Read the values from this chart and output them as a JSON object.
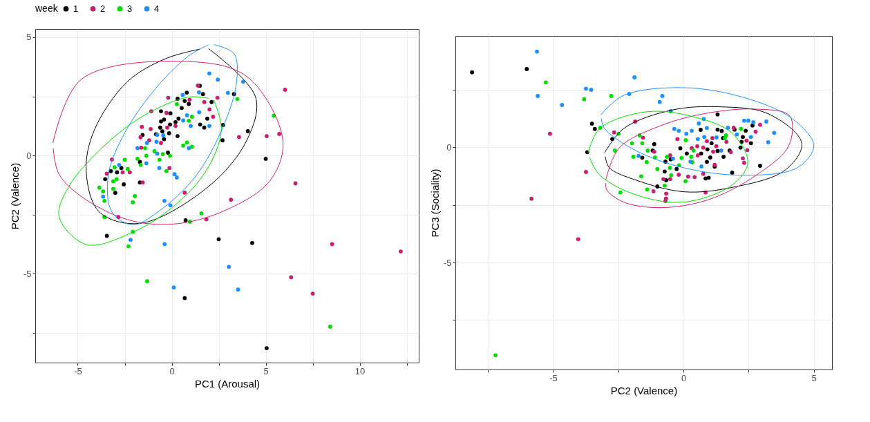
{
  "chart_data": [
    {
      "type": "scatter",
      "xlabel": "PC1 (Arousal)",
      "ylabel": "PC2 (Valence)",
      "legend_title": "week",
      "legend": "top",
      "grid": true,
      "marker": "circle",
      "xlim": [
        -7.26,
        13.14
      ],
      "ylim": [
        -8.76,
        5.35
      ],
      "xticks": [
        -5,
        {
          "value": -2.5,
          "label": null
        },
        0,
        {
          "value": 2.5,
          "label": null
        },
        5,
        {
          "value": 7.5,
          "label": null
        },
        10,
        {
          "value": 12.5,
          "label": null
        }
      ],
      "yticks": [
        {
          "value": -7.5,
          "label": null
        },
        -5,
        {
          "value": -2.5,
          "label": null
        },
        0,
        {
          "value": 2.5,
          "label": null
        },
        5
      ],
      "series": [
        {
          "name": "1",
          "color": "#000000",
          "x": [
            1.49,
            0.8,
            1.66,
            3.31,
            0.31,
            0.69,
            0.91,
            0.53,
            2.12,
            -0.57,
            -0.07,
            1.89,
            -0.41,
            0.36,
            0.2,
            -0.57,
            -0.09,
            1.51,
            1.73,
            2.73,
            -0.61,
            -0.5,
            -0.14,
            -0.84,
            -1.55,
            0.31,
            -0.41,
            4.05,
            2.7,
            -0.2,
            -1.69,
            5.0,
            -2.91,
            -2.68,
            -3.24,
            -3.54,
            -2.55,
            -3.0,
            -1.69,
            0.74,
            -3.45,
            2.5,
            4.28,
            0.69,
            5.05
          ],
          "values": [
            2.95,
            2.66,
            2.6,
            2.6,
            2.4,
            2.31,
            2.18,
            2.01,
            2.26,
            1.87,
            1.78,
            1.56,
            1.52,
            1.56,
            1.41,
            1.44,
            1.31,
            1.31,
            1.18,
            1.29,
            1.18,
            1.02,
            0.94,
            0.9,
            0.87,
            0.82,
            0.69,
            1.03,
            0.64,
            0.12,
            -0.27,
            -0.14,
            -0.71,
            -0.53,
            -0.66,
            -1.0,
            -1.22,
            -1.58,
            -1.14,
            -2.74,
            -3.4,
            -3.54,
            -3.7,
            -6.03,
            -8.15
          ]
        },
        {
          "name": "2",
          "color": "#cc1e6e",
          "x": [
            1.39,
            -0.19,
            0.95,
            2.43,
            6.03,
            2.01,
            2.2,
            1.73,
            -1.09,
            -0.28,
            -1.59,
            -1.12,
            -0.24,
            0.2,
            -1.66,
            -1.2,
            -0.57,
            -1.62,
            3.58,
            5.05,
            5.72,
            -0.12,
            -3.18,
            -3.45,
            -2.61,
            -2.23,
            -1.55,
            6.58,
            0.69,
            3.15,
            1.84,
            -2.84,
            8.53,
            12.18,
            6.35,
            7.5
          ],
          "values": [
            2.96,
            2.44,
            2.36,
            2.44,
            2.78,
            1.95,
            1.64,
            2.26,
            1.87,
            1.8,
            1.21,
            1.12,
            1.18,
            1.25,
            0.77,
            0.64,
            0.53,
            0.33,
            0.78,
            0.82,
            0.91,
            -0.53,
            -0.17,
            -0.77,
            -0.71,
            -0.71,
            -1.14,
            -1.18,
            -1.57,
            -1.87,
            -2.7,
            -2.6,
            -3.75,
            -4.06,
            -5.15,
            -5.84
          ]
        },
        {
          "name": "3",
          "color": "#00dd00",
          "x": [
            0.27,
            3.49,
            1.08,
            0.91,
            5.43,
            0.81,
            0.61,
            1.08,
            -1.42,
            -1.35,
            -0.92,
            -0.47,
            -0.09,
            -0.65,
            -1.82,
            -1.65,
            -2.5,
            -2.34,
            -0.28,
            -3.04,
            -3.11,
            -2.93,
            -3.85,
            -3.65,
            -3.58,
            -3.11,
            -1.96,
            -2.07,
            -3.58,
            1.58,
            0.97,
            -2.07,
            -2.3,
            -1.31,
            8.43
          ],
          "values": [
            2.17,
            2.39,
            1.64,
            1.47,
            1.68,
            0.55,
            0.42,
            0.37,
            0.31,
            -0.01,
            0.18,
            0.06,
            -0.01,
            -0.18,
            -0.14,
            -0.4,
            -0.18,
            -0.57,
            -0.66,
            -0.5,
            -1.09,
            -1.0,
            -1.36,
            -1.52,
            -1.92,
            -1.41,
            -1.72,
            -1.98,
            -2.6,
            -2.45,
            -2.8,
            -3.23,
            -3.84,
            -5.32,
            -7.24
          ]
        },
        {
          "name": "4",
          "color": "#1e90ff",
          "x": [
            2.0,
            2.45,
            3.8,
            2.99,
            1.45,
            0.58,
            1.46,
            0.81,
            0.61,
            1.01,
            2.0,
            -0.77,
            -0.45,
            -0.81,
            -1.32,
            -1.82,
            0.91,
            -0.77,
            -1.35,
            -2.8,
            -0.66,
            0.15,
            0.27,
            -3.65,
            -0.39,
            -0.07,
            -2.19,
            -0.38,
            3.04,
            0.11,
            3.53
          ],
          "values": [
            3.47,
            3.21,
            3.12,
            2.65,
            2.67,
            2.56,
            1.83,
            1.7,
            1.48,
            1.25,
            1.25,
            0.87,
            0.85,
            0.58,
            0.53,
            0.31,
            0.31,
            0.08,
            -0.33,
            -0.4,
            -0.53,
            -0.79,
            -0.93,
            -1.74,
            -1.92,
            -2.11,
            -3.57,
            -3.75,
            -4.71,
            -5.58,
            -5.67
          ]
        },
        {
          "type": "line",
          "marker": "none",
          "color": "#000000",
          "x": [
            1.96,
            4.46,
            3.99,
            1.96,
            -1.69,
            -3.85,
            -4.55,
            -4.12,
            -2.36,
            -0.34,
            1.5
          ],
          "values": [
            4.52,
            2.47,
            0.64,
            -1.31,
            -2.87,
            -2.39,
            -0.66,
            1.07,
            3.12,
            4.09,
            4.5
          ]
        },
        {
          "type": "line",
          "marker": "none",
          "color": "#cc1e6e",
          "x": [
            -6.32,
            -4.8,
            0.61,
            3.99,
            5.91,
            5.2,
            2.64,
            0.07,
            -2.36,
            -4.8,
            -6.01,
            -6.3
          ],
          "values": [
            0.53,
            3.23,
            3.98,
            3.34,
            0.64,
            -1.09,
            -2.39,
            -2.9,
            -2.71,
            -1.74,
            -0.77,
            0.3
          ]
        },
        {
          "type": "line",
          "marker": "none",
          "color": "#00dd00",
          "x": [
            2.23,
            2.64,
            1.82,
            0.07,
            -2.09,
            -4.53,
            -5.99,
            -5.47,
            -3.58,
            -1.42,
            0.88,
            1.95
          ],
          "values": [
            2.36,
            1.07,
            -0.66,
            -2.17,
            -3.25,
            -3.77,
            -2.6,
            -1.31,
            0.42,
            1.72,
            2.47,
            2.42
          ]
        },
        {
          "type": "line",
          "marker": "none",
          "color": "#1e90ff",
          "x": [
            2.23,
            3.31,
            3.45,
            2.77,
            1.28,
            -0.74,
            -2.09,
            -3.18,
            -3.38,
            -2.64,
            -1.01,
            0.88,
            1.95
          ],
          "values": [
            4.69,
            4.31,
            3.12,
            1.29,
            -0.87,
            -2.39,
            -2.93,
            -2.39,
            -0.87,
            0.75,
            2.69,
            4.2,
            4.68
          ]
        }
      ]
    },
    {
      "type": "scatter",
      "xlabel": "PC2 (Valence)",
      "ylabel": "PC3 (Sociality)",
      "grid": true,
      "marker": "circle",
      "xlim": [
        -8.75,
        5.7
      ],
      "ylim": [
        -9.65,
        4.84
      ],
      "xticks": [
        {
          "value": -7.5,
          "label": null
        },
        -5,
        {
          "value": -2.5,
          "label": null
        },
        0,
        {
          "value": 2.5,
          "label": null
        },
        5
      ],
      "yticks": [
        {
          "value": -7.5,
          "label": null
        },
        -5,
        {
          "value": -2.5,
          "label": null
        },
        0,
        {
          "value": 2.5,
          "label": null
        }
      ],
      "series": [
        {
          "name": "1",
          "color": "#000000",
          "x": [
            -8.11,
            -6.01,
            -3.51,
            -3.4,
            -2.73,
            -3.69,
            -1.12,
            -1.18,
            -1.58,
            -0.12,
            0.13,
            0.66,
            1.31,
            1.31,
            1.47,
            1.96,
            2.39,
            2.65,
            2.28,
            2.59,
            2.23,
            2.19,
            1.77,
            1.52,
            1.08,
            0.92,
            1.31,
            0.68,
            1.03,
            0.9,
            1.54,
            1.2,
            1.87,
            2.94,
            0.85,
            0.97,
            -0.26,
            -0.49,
            -0.69,
            -0.72,
            -0.66,
            -1.0
          ],
          "values": [
            3.26,
            3.4,
            1.03,
            0.8,
            0.36,
            -0.21,
            0.14,
            -0.14,
            -0.45,
            -0.04,
            -0.27,
            0.76,
            1.43,
            0.77,
            0.71,
            0.77,
            0.72,
            0.95,
            0.45,
            0.18,
            0.24,
            -0.01,
            -0.14,
            0.4,
            0.18,
            -0.09,
            -0.16,
            -0.27,
            -0.44,
            -0.63,
            -0.41,
            -0.84,
            -1.1,
            -0.8,
            -1.35,
            -1.32,
            -0.94,
            -0.52,
            -0.62,
            -1.05,
            -1.43,
            -1.7
          ]
        },
        {
          "name": "2",
          "color": "#cc1e6e",
          "x": [
            -5.12,
            -3.74,
            -5.83,
            -4.04,
            -1.85,
            -2.66,
            -1.55,
            -1.12,
            -0.23,
            0.32,
            0.53,
            0.76,
            0.9,
            1.11,
            1.26,
            1.14,
            1.65,
            1.82,
            1.93,
            2.42,
            2.45,
            2.77,
            2.94,
            2.28,
            2.33,
            1.2,
            0.55,
            -0.51,
            -0.51,
            -0.77,
            -0.18,
            0.18,
            0.43,
            0.76,
            0.85,
            -1.15,
            -0.66,
            -0.67,
            -0.69
          ],
          "values": [
            0.59,
            -1.07,
            -2.23,
            -3.99,
            1.12,
            0.65,
            0.42,
            -0.19,
            0.36,
            -0.03,
            0.05,
            -0.01,
            0.27,
            0.4,
            0.05,
            -0.19,
            0.24,
            -0.21,
            0.85,
            0.29,
            -0.12,
            0.68,
            0.98,
            -0.48,
            -0.67,
            -0.76,
            -0.35,
            -0.35,
            -1.38,
            -1.38,
            -1.19,
            -1.27,
            -1.29,
            -1.15,
            -1.96,
            -1.91,
            -2.01,
            -2.22,
            -2.33
          ]
        },
        {
          "name": "3",
          "color": "#00dd00",
          "x": [
            -7.21,
            -5.28,
            -3.81,
            -2.77,
            -3.19,
            -2.49,
            -1.68,
            -1.97,
            -1.58,
            -2.63,
            -1.92,
            -1.37,
            -1.09,
            -1.41,
            -1.62,
            -1.39,
            -2.42,
            -1.0,
            -0.63,
            -0.52,
            -0.17,
            -0.07,
            0.09,
            0.39,
            0.3,
            0.34,
            0.08,
            -0.72,
            1.59,
            2.21,
            1.63,
            -0.47
          ],
          "values": [
            -9.03,
            2.82,
            2.09,
            2.23,
            0.85,
            0.59,
            0.52,
            0.18,
            0.18,
            -0.14,
            -0.41,
            -0.14,
            -0.44,
            -0.64,
            -1.26,
            -1.83,
            -1.96,
            -0.94,
            -0.41,
            -0.89,
            -0.78,
            -0.46,
            0.31,
            -0.14,
            -0.41,
            -0.65,
            -1.47,
            -1.66,
            0.4,
            0.8,
            0.52,
            -1.21
          ]
        },
        {
          "name": "4",
          "color": "#1e90ff",
          "x": [
            -5.62,
            -5.59,
            -4.66,
            -3.74,
            -3.54,
            -1.88,
            -2.08,
            -0.81,
            -0.91,
            -0.49,
            -0.35,
            -0.18,
            0.11,
            0.32,
            0.59,
            0.78,
            0.9,
            0.8,
            0.55,
            1.27,
            1.71,
            2.05,
            2.33,
            2.49,
            2.68,
            2.59,
            3.18,
            3.48,
            3.25,
            1.45,
            0.69,
            0.27,
            -1.72,
            -0.4
          ],
          "values": [
            4.16,
            2.23,
            1.84,
            2.55,
            2.5,
            3.04,
            2.32,
            2.23,
            1.97,
            1.57,
            0.8,
            0.72,
            0.59,
            0.72,
            1.04,
            1.23,
            0.84,
            0.45,
            0.36,
            0.43,
            0.85,
            0.56,
            1.16,
            1.16,
            1.09,
            0.45,
            1.12,
            0.63,
            0.22,
            -0.14,
            -0.83,
            -0.62,
            -0.37,
            -0.49
          ]
        },
        {
          "type": "line",
          "marker": "none",
          "color": "#000000",
          "x": [
            -3.03,
            -2.29,
            -0.44,
            1.4,
            3.25,
            4.54,
            3.9,
            1.87,
            0.02,
            -1.83,
            -2.84,
            -3.0
          ],
          "values": [
            -0.25,
            0.82,
            1.62,
            1.76,
            1.46,
            0.18,
            -0.99,
            -1.74,
            -1.93,
            -1.42,
            -0.89,
            -0.4
          ]
        },
        {
          "type": "line",
          "marker": "none",
          "color": "#cc1e6e",
          "x": [
            -2.98,
            -2.47,
            -0.9,
            0.94,
            2.79,
            4.08,
            4.04,
            2.79,
            0.94,
            -0.9,
            -2.29,
            -2.94,
            -2.98
          ],
          "values": [
            -1.42,
            -0.03,
            0.93,
            1.49,
            1.66,
            1.36,
            0.07,
            -1.21,
            -2.28,
            -2.62,
            -2.38,
            -1.85,
            -1.55
          ]
        },
        {
          "type": "line",
          "marker": "none",
          "color": "#00dd00",
          "x": [
            -3.66,
            -3.21,
            -1.37,
            0.48,
            1.87,
            2.47,
            1.87,
            0.02,
            -1.83,
            -3.21,
            -3.6
          ],
          "values": [
            -0.25,
            0.82,
            1.55,
            1.3,
            0.61,
            -0.67,
            -1.63,
            -2.38,
            -2.06,
            -1.21,
            -0.45
          ]
        },
        {
          "type": "line",
          "marker": "none",
          "color": "#1e90ff",
          "x": [
            -3.17,
            -2.29,
            0.02,
            2.33,
            4.17,
            5.0,
            4.36,
            2.33,
            0.02,
            -1.83,
            -3.03,
            -3.15
          ],
          "values": [
            1.41,
            2.26,
            2.59,
            2.16,
            1.25,
            0.07,
            -0.89,
            -1.21,
            -0.89,
            -0.14,
            0.82,
            1.25
          ]
        }
      ]
    }
  ]
}
